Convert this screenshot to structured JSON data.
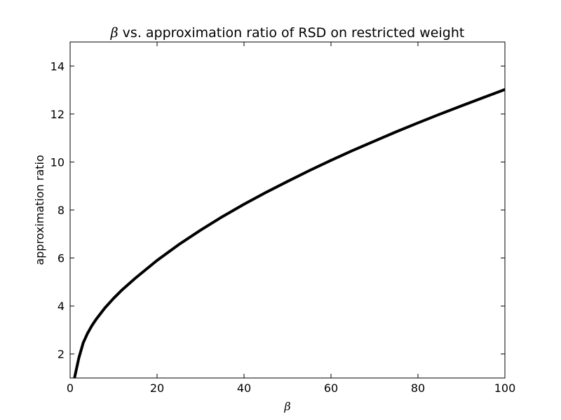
{
  "chart_data": {
    "type": "line",
    "title": {
      "symbol": "β",
      "text": " vs. approximation ratio of RSD on restricted weight"
    },
    "xlabel": "β",
    "ylabel": "approximation ratio",
    "xlim": [
      0,
      100
    ],
    "ylim": [
      1,
      15
    ],
    "xticks": [
      0,
      20,
      40,
      60,
      80,
      100
    ],
    "yticks": [
      2,
      4,
      6,
      8,
      10,
      12,
      14
    ],
    "grid": false,
    "line_color": "#000000",
    "series": [
      {
        "x": [
          1,
          2,
          3,
          4,
          5,
          6,
          8,
          10,
          12,
          15,
          20,
          25,
          30,
          35,
          40,
          45,
          50,
          55,
          60,
          65,
          70,
          75,
          80,
          85,
          90,
          95,
          100
        ],
        "values": [
          1.0,
          1.83,
          2.46,
          2.86,
          3.18,
          3.45,
          3.92,
          4.32,
          4.68,
          5.16,
          5.9,
          6.56,
          7.16,
          7.72,
          8.24,
          8.73,
          9.19,
          9.64,
          10.07,
          10.48,
          10.87,
          11.26,
          11.63,
          11.99,
          12.34,
          12.68,
          13.02
        ]
      }
    ]
  }
}
